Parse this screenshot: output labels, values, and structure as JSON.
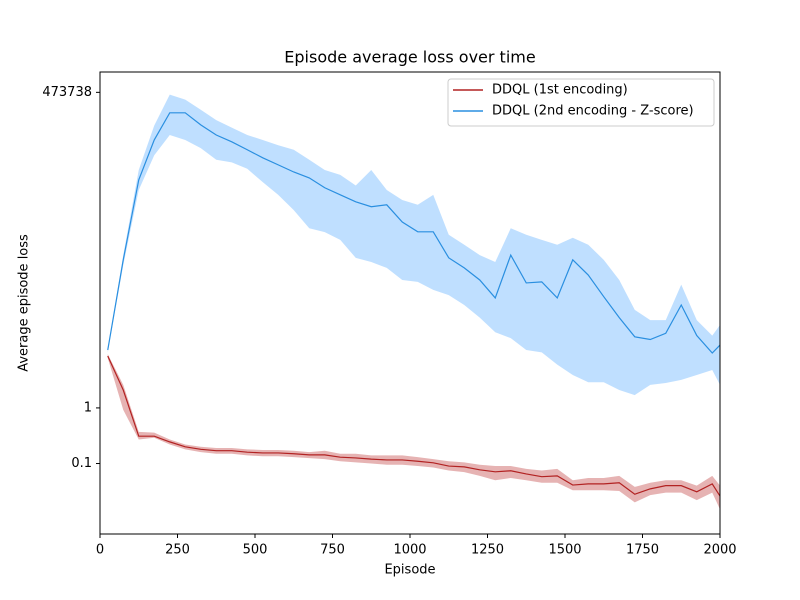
{
  "chart_data": {
    "type": "line",
    "title": "Episode average loss over time",
    "xlabel": "Episode",
    "ylabel": "Average episode loss",
    "yscale": "log",
    "grid": false,
    "legend": "upper right",
    "xlim": [
      0,
      2000
    ],
    "xticks": [
      0,
      250,
      500,
      750,
      1000,
      1250,
      1500,
      1750,
      2000
    ],
    "ylim": [
      0.0054,
      1100000
    ],
    "yticks": [
      0.1,
      1,
      473738
    ],
    "x": [
      25,
      75,
      125,
      175,
      225,
      275,
      325,
      375,
      425,
      475,
      525,
      575,
      625,
      675,
      725,
      775,
      825,
      875,
      925,
      975,
      1025,
      1075,
      1125,
      1175,
      1225,
      1275,
      1325,
      1375,
      1425,
      1475,
      1525,
      1575,
      1625,
      1675,
      1725,
      1775,
      1825,
      1875,
      1925,
      1975,
      2000
    ],
    "series": [
      {
        "name": "DDQL (1st encoding)",
        "color": "#b22222",
        "band_color": "#e3abab",
        "values": [
          8.6,
          2.1,
          0.31,
          0.31,
          0.245,
          0.2,
          0.18,
          0.17,
          0.17,
          0.16,
          0.155,
          0.155,
          0.15,
          0.143,
          0.143,
          0.13,
          0.126,
          0.12,
          0.116,
          0.116,
          0.11,
          0.103,
          0.09,
          0.087,
          0.077,
          0.071,
          0.074,
          0.065,
          0.058,
          0.06,
          0.041,
          0.043,
          0.043,
          0.045,
          0.028,
          0.035,
          0.04,
          0.04,
          0.031,
          0.043,
          0.026
        ],
        "upper": [
          9.3,
          2.6,
          0.37,
          0.36,
          0.27,
          0.22,
          0.2,
          0.19,
          0.19,
          0.18,
          0.175,
          0.175,
          0.17,
          0.16,
          0.17,
          0.15,
          0.15,
          0.14,
          0.14,
          0.14,
          0.13,
          0.12,
          0.11,
          0.105,
          0.095,
          0.09,
          0.09,
          0.08,
          0.075,
          0.08,
          0.05,
          0.055,
          0.055,
          0.06,
          0.038,
          0.045,
          0.05,
          0.05,
          0.04,
          0.06,
          0.04
        ],
        "lower": [
          7.9,
          0.92,
          0.27,
          0.29,
          0.22,
          0.18,
          0.16,
          0.15,
          0.15,
          0.14,
          0.135,
          0.135,
          0.13,
          0.125,
          0.12,
          0.11,
          0.105,
          0.1,
          0.095,
          0.095,
          0.09,
          0.085,
          0.075,
          0.07,
          0.06,
          0.05,
          0.055,
          0.05,
          0.045,
          0.045,
          0.033,
          0.033,
          0.033,
          0.032,
          0.02,
          0.027,
          0.03,
          0.03,
          0.022,
          0.03,
          0.015
        ]
      },
      {
        "name": "DDQL (2nd encoding - Z-score)",
        "color": "#2a8fe0",
        "band_color": "#b8dcff",
        "values": [
          11,
          460,
          12600,
          66000,
          203000,
          203000,
          123000,
          81000,
          61000,
          44000,
          31500,
          23500,
          17500,
          13700,
          9100,
          6800,
          5100,
          4150,
          4500,
          2200,
          1470,
          1470,
          500,
          330,
          200,
          95,
          560,
          177,
          185,
          95,
          460,
          245,
          100,
          42,
          19,
          17,
          22,
          71,
          20,
          9.7,
          13.5
        ],
        "upper": [
          11.5,
          560,
          19000,
          120000,
          430000,
          350000,
          230000,
          150000,
          110000,
          81000,
          66000,
          53000,
          44000,
          29000,
          19000,
          15500,
          10000,
          19000,
          8300,
          5500,
          4500,
          6800,
          1300,
          860,
          560,
          420,
          1700,
          1300,
          1050,
          860,
          1150,
          860,
          460,
          200,
          58,
          38,
          38,
          165,
          38,
          20,
          31
        ],
        "lower": [
          10,
          370,
          8300,
          35000,
          81000,
          66000,
          47000,
          29000,
          26000,
          20000,
          11500,
          6800,
          3600,
          1700,
          1450,
          1050,
          500,
          420,
          330,
          200,
          185,
          133,
          107,
          71,
          42,
          23,
          18,
          11,
          10,
          6,
          3.9,
          2.9,
          2.9,
          2.1,
          1.7,
          2.6,
          2.8,
          3.2,
          3.9,
          4.8,
          2.6
        ]
      }
    ]
  }
}
